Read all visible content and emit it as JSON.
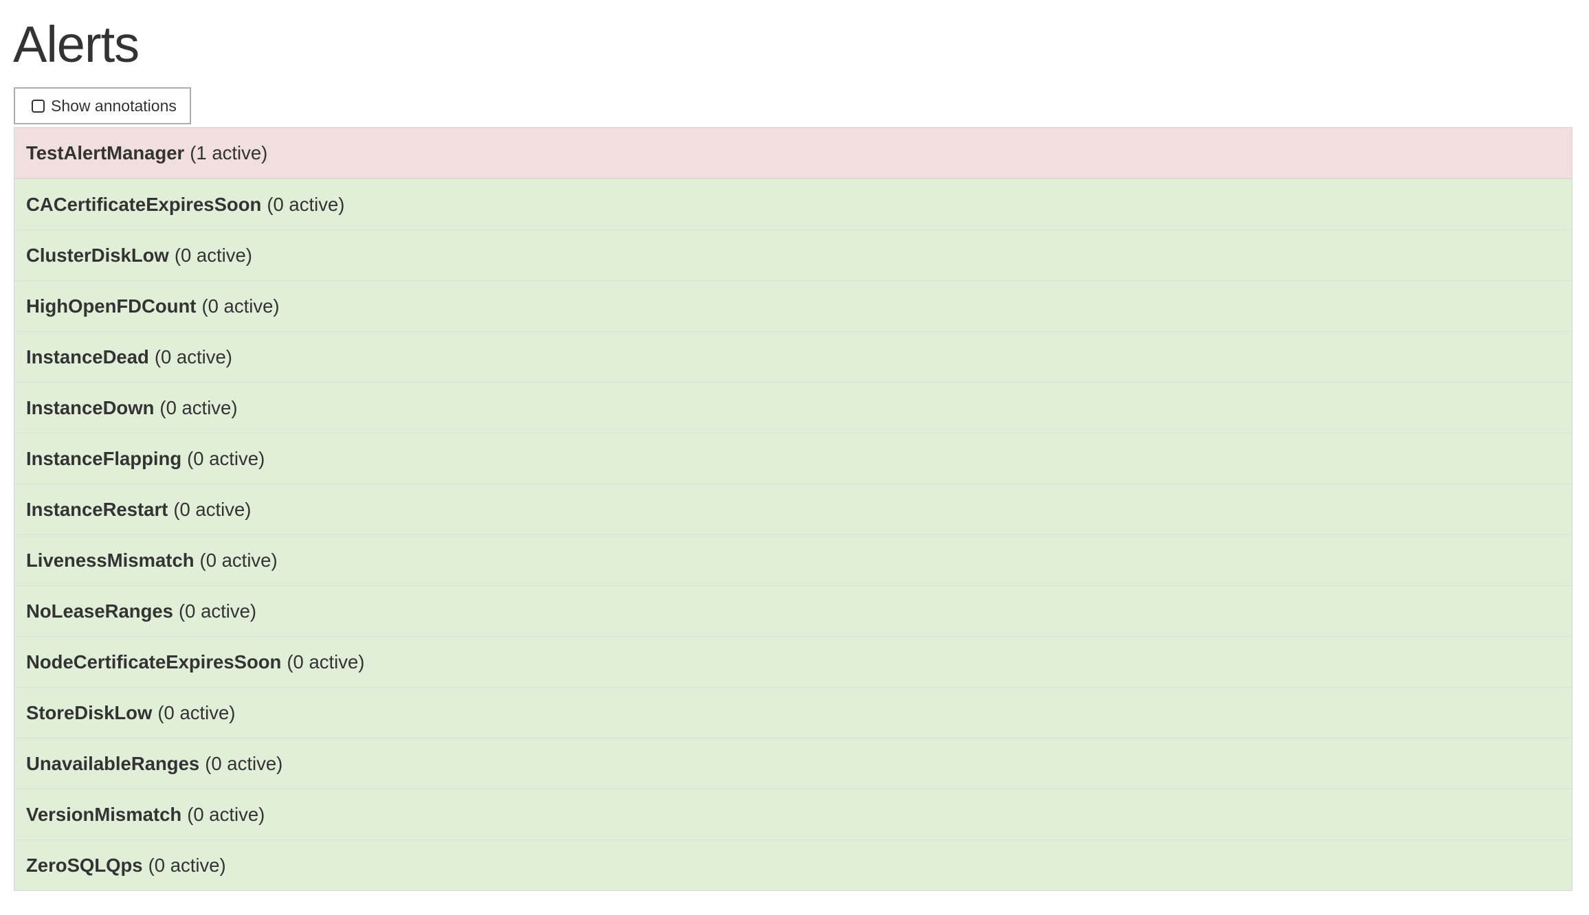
{
  "page": {
    "title": "Alerts"
  },
  "toolbar": {
    "show_annotations_label": "Show annotations",
    "show_annotations_checked": false
  },
  "colors": {
    "firing_bg": "#f1dede",
    "inactive_bg": "#e1efd9",
    "text": "#333333"
  },
  "alerts": [
    {
      "name": "TestAlertManager",
      "count": "(1 active)",
      "state": "firing"
    },
    {
      "name": "CACertificateExpiresSoon",
      "count": "(0 active)",
      "state": "inactive"
    },
    {
      "name": "ClusterDiskLow",
      "count": "(0 active)",
      "state": "inactive"
    },
    {
      "name": "HighOpenFDCount",
      "count": "(0 active)",
      "state": "inactive"
    },
    {
      "name": "InstanceDead",
      "count": "(0 active)",
      "state": "inactive"
    },
    {
      "name": "InstanceDown",
      "count": "(0 active)",
      "state": "inactive"
    },
    {
      "name": "InstanceFlapping",
      "count": "(0 active)",
      "state": "inactive"
    },
    {
      "name": "InstanceRestart",
      "count": "(0 active)",
      "state": "inactive"
    },
    {
      "name": "LivenessMismatch",
      "count": "(0 active)",
      "state": "inactive"
    },
    {
      "name": "NoLeaseRanges",
      "count": "(0 active)",
      "state": "inactive"
    },
    {
      "name": "NodeCertificateExpiresSoon",
      "count": "(0 active)",
      "state": "inactive"
    },
    {
      "name": "StoreDiskLow",
      "count": "(0 active)",
      "state": "inactive"
    },
    {
      "name": "UnavailableRanges",
      "count": "(0 active)",
      "state": "inactive"
    },
    {
      "name": "VersionMismatch",
      "count": "(0 active)",
      "state": "inactive"
    },
    {
      "name": "ZeroSQLQps",
      "count": "(0 active)",
      "state": "inactive"
    }
  ]
}
